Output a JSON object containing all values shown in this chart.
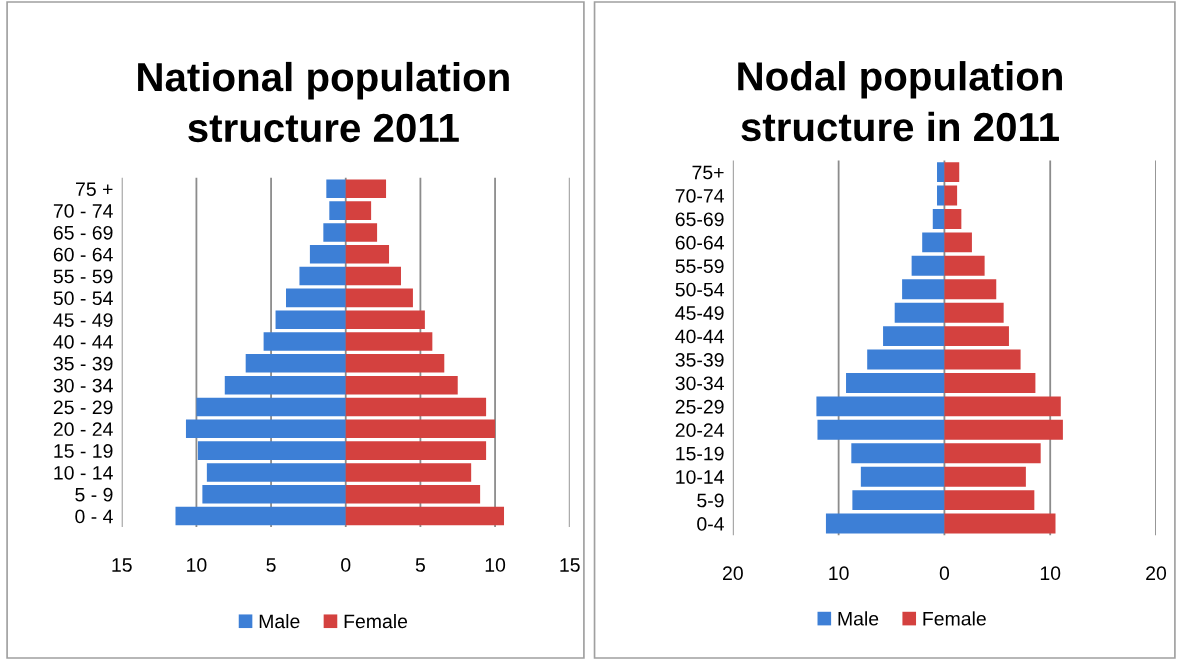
{
  "chart_data": [
    {
      "type": "bar",
      "orientation": "horizontal",
      "stacked": true,
      "title": "National population\nstructure 2011",
      "categories": [
        "75 +",
        "70 - 74",
        "65 - 69",
        "60 - 64",
        "55 - 59",
        "50 - 54",
        "45 - 49",
        "40 - 44",
        "35 - 39",
        "30 - 34",
        "25 - 29",
        "20 - 24",
        "15 - 19",
        "10 - 14",
        "5 - 9",
        "0 - 4"
      ],
      "series": [
        {
          "name": "Male",
          "color": "#3d7fd6",
          "values": [
            -1.3,
            -1.1,
            -1.5,
            -2.4,
            -3.1,
            -4.0,
            -4.7,
            -5.5,
            -6.7,
            -8.1,
            -10.0,
            -10.7,
            -9.9,
            -9.3,
            -9.6,
            -11.4
          ]
        },
        {
          "name": "Female",
          "color": "#d4413f",
          "values": [
            2.7,
            1.7,
            2.1,
            2.9,
            3.7,
            4.5,
            5.3,
            5.8,
            6.6,
            7.5,
            9.4,
            10.0,
            9.4,
            8.4,
            9.0,
            10.6
          ]
        }
      ],
      "xlim": [
        -15,
        15
      ],
      "xticks": [
        {
          "value": -15,
          "label": "15"
        },
        {
          "value": -10,
          "label": "10"
        },
        {
          "value": -5,
          "label": "5"
        },
        0,
        5,
        10,
        15
      ],
      "grid": "x",
      "legend": "bottom"
    },
    {
      "type": "bar",
      "orientation": "horizontal",
      "stacked": true,
      "title": "Nodal population\nstructure in 2011",
      "categories": [
        "75+",
        "70-74",
        "65-69",
        "60-64",
        "55-59",
        "50-54",
        "45-49",
        "40-44",
        "35-39",
        "30-34",
        "25-29",
        "20-24",
        "15-19",
        "10-14",
        "5-9",
        "0-4"
      ],
      "series": [
        {
          "name": "Male",
          "color": "#3d7fd6",
          "values": [
            -0.7,
            -0.7,
            -1.1,
            -2.1,
            -3.1,
            -4.0,
            -4.7,
            -5.8,
            -7.3,
            -9.3,
            -12.1,
            -12.0,
            -8.8,
            -7.9,
            -8.7,
            -11.2
          ]
        },
        {
          "name": "Female",
          "color": "#d4413f",
          "values": [
            1.4,
            1.2,
            1.6,
            2.6,
            3.8,
            4.9,
            5.6,
            6.1,
            7.2,
            8.6,
            11.0,
            11.2,
            9.1,
            7.7,
            8.5,
            10.5
          ]
        }
      ],
      "xlim": [
        -20,
        20
      ],
      "xticks": [
        {
          "value": -20,
          "label": "20"
        },
        {
          "value": -10,
          "label": "10"
        },
        0,
        10,
        20
      ],
      "grid": "x",
      "legend": "bottom"
    }
  ]
}
